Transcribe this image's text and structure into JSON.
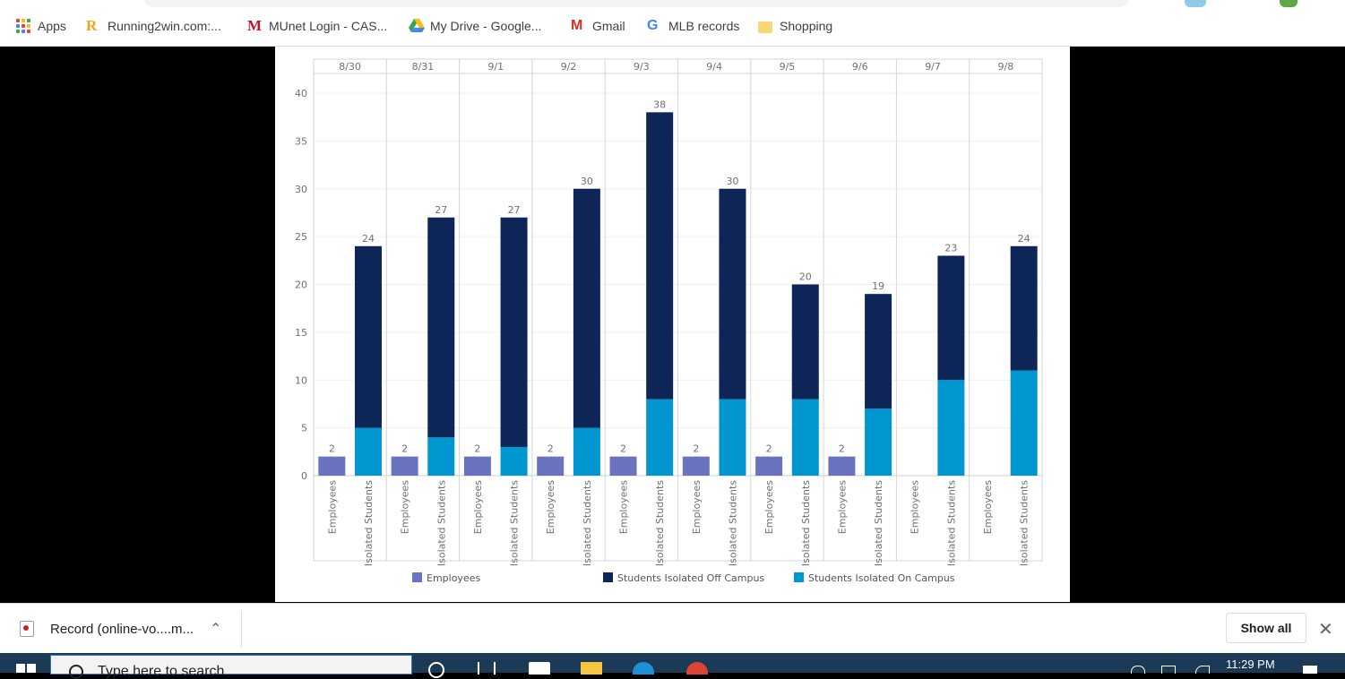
{
  "bookmarks": [
    {
      "label": "Apps",
      "icon": "apps-grid-icon"
    },
    {
      "label": "Running2win.com:...",
      "icon": "running2win-icon"
    },
    {
      "label": "MUnet Login - CAS...",
      "icon": "miami-m-icon"
    },
    {
      "label": "My Drive - Google...",
      "icon": "google-drive-icon"
    },
    {
      "label": "Gmail",
      "icon": "gmail-icon"
    },
    {
      "label": "MLB records",
      "icon": "google-g-icon"
    },
    {
      "label": "Shopping",
      "icon": "folder-icon"
    }
  ],
  "colors": {
    "employees": "#6a73c0",
    "off_campus": "#0d2557",
    "on_campus": "#0096cf"
  },
  "chart_data": {
    "type": "bar",
    "stacked": true,
    "dates": [
      "8/30",
      "8/31",
      "9/1",
      "9/2",
      "9/3",
      "9/4",
      "9/5",
      "9/6",
      "9/7",
      "9/8"
    ],
    "subcategories": [
      "Employees",
      "Isolated Students"
    ],
    "series": [
      {
        "name": "Employees",
        "group": "Employees",
        "color": "#6a73c0",
        "values": [
          2,
          2,
          2,
          2,
          2,
          2,
          2,
          2,
          null,
          null
        ]
      },
      {
        "name": "Students Isolated On Campus",
        "group": "Isolated Students",
        "color": "#0096cf",
        "values": [
          5,
          4,
          3,
          5,
          8,
          8,
          8,
          7,
          10,
          11
        ]
      },
      {
        "name": "Students Isolated Off Campus",
        "group": "Isolated Students",
        "color": "#0d2557",
        "values": [
          19,
          23,
          24,
          25,
          30,
          22,
          12,
          12,
          13,
          13
        ]
      }
    ],
    "totals": {
      "Employees": [
        2,
        2,
        2,
        2,
        2,
        2,
        2,
        2,
        null,
        null
      ],
      "Isolated Students": [
        24,
        27,
        27,
        30,
        38,
        30,
        20,
        19,
        23,
        24
      ]
    },
    "yticks": [
      0,
      5,
      10,
      15,
      20,
      25,
      30,
      35,
      40
    ],
    "ylim": [
      0,
      40
    ],
    "grid": true,
    "legend": {
      "position": "bottom",
      "entries": [
        "Employees",
        "Students Isolated Off Campus",
        "Students Isolated On Campus"
      ]
    },
    "title": "",
    "xlabel": "",
    "ylabel": ""
  },
  "downloads": {
    "file_label": "Record (online-vo....m...",
    "show_all": "Show all",
    "close_glyph": "✕",
    "chevron_glyph": "⌃"
  },
  "taskbar": {
    "search_placeholder": "Type here to search",
    "time": "11:29 PM"
  }
}
